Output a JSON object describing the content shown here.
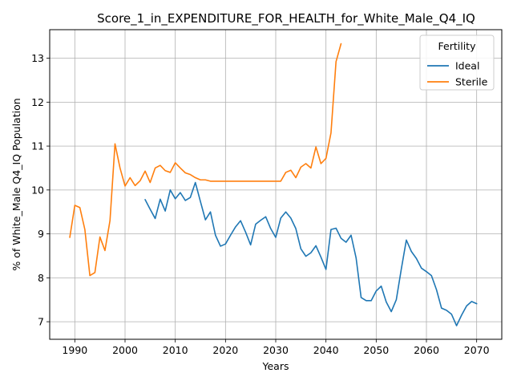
{
  "chart_data": {
    "type": "line",
    "title": "Score_1_in_EXPENDITURE_FOR_HEALTH_for_White_Male_Q4_IQ",
    "xlabel": "Years",
    "ylabel": "% of White_Male Q4_IQ Population",
    "xlim": [
      1985,
      2075
    ],
    "ylim": [
      6.6,
      13.65
    ],
    "xticks": [
      1990,
      2000,
      2010,
      2020,
      2030,
      2040,
      2050,
      2060,
      2070
    ],
    "yticks": [
      7,
      8,
      9,
      10,
      11,
      12,
      13
    ],
    "grid": true,
    "legend": {
      "title": "Fertility",
      "placement": "top-right"
    },
    "series": [
      {
        "name": "Ideal",
        "color": "#1f77b4",
        "x": [
          2004,
          2005,
          2006,
          2007,
          2008,
          2009,
          2010,
          2011,
          2012,
          2013,
          2014,
          2015,
          2016,
          2017,
          2018,
          2019,
          2020,
          2021,
          2022,
          2023,
          2024,
          2025,
          2026,
          2027,
          2028,
          2029,
          2030,
          2031,
          2032,
          2033,
          2034,
          2035,
          2036,
          2037,
          2038,
          2039,
          2040,
          2041,
          2042,
          2043,
          2044,
          2045,
          2046,
          2047,
          2048,
          2049,
          2050,
          2051,
          2052,
          2053,
          2054,
          2055,
          2056,
          2057,
          2058,
          2059,
          2060,
          2061,
          2062,
          2063,
          2064,
          2065,
          2066,
          2067,
          2068,
          2069,
          2070
        ],
        "values": [
          9.78,
          9.56,
          9.35,
          9.79,
          9.52,
          10.0,
          9.8,
          9.94,
          9.76,
          9.83,
          10.17,
          9.74,
          9.32,
          9.5,
          8.97,
          8.72,
          8.77,
          8.97,
          9.16,
          9.3,
          9.04,
          8.75,
          9.22,
          9.31,
          9.39,
          9.12,
          8.92,
          9.36,
          9.5,
          9.36,
          9.12,
          8.66,
          8.49,
          8.57,
          8.73,
          8.47,
          8.19,
          9.1,
          9.13,
          8.9,
          8.81,
          8.97,
          8.45,
          7.55,
          7.48,
          7.48,
          7.7,
          7.81,
          7.45,
          7.23,
          7.5,
          8.2,
          8.86,
          8.6,
          8.44,
          8.22,
          8.14,
          8.05,
          7.73,
          7.31,
          7.26,
          7.17,
          6.91,
          7.15,
          7.36,
          7.46,
          7.41
        ]
      },
      {
        "name": "Sterile",
        "color": "#ff7f0e",
        "x": [
          1989,
          1990,
          1991,
          1992,
          1993,
          1994,
          1995,
          1996,
          1997,
          1998,
          1999,
          2000,
          2001,
          2002,
          2003,
          2004,
          2005,
          2006,
          2007,
          2008,
          2009,
          2010,
          2011,
          2012,
          2013,
          2014,
          2015,
          2016,
          2017,
          2018,
          2019,
          2020,
          2021,
          2022,
          2023,
          2024,
          2025,
          2026,
          2027,
          2028,
          2029,
          2030,
          2031,
          2032,
          2033,
          2034,
          2035,
          2036,
          2037,
          2038,
          2039,
          2040,
          2041,
          2042,
          2043
        ],
        "values": [
          8.92,
          9.65,
          9.6,
          9.1,
          8.05,
          8.12,
          8.93,
          8.62,
          9.3,
          11.05,
          10.5,
          10.09,
          10.28,
          10.1,
          10.21,
          10.43,
          10.17,
          10.5,
          10.56,
          10.44,
          10.4,
          10.62,
          10.5,
          10.39,
          10.35,
          10.28,
          10.23,
          10.23,
          10.2,
          10.2,
          10.2,
          10.2,
          10.2,
          10.2,
          10.2,
          10.2,
          10.2,
          10.2,
          10.2,
          10.2,
          10.2,
          10.2,
          10.2,
          10.4,
          10.45,
          10.28,
          10.52,
          10.6,
          10.5,
          10.98,
          10.6,
          10.72,
          11.3,
          12.92,
          13.33
        ]
      }
    ]
  }
}
